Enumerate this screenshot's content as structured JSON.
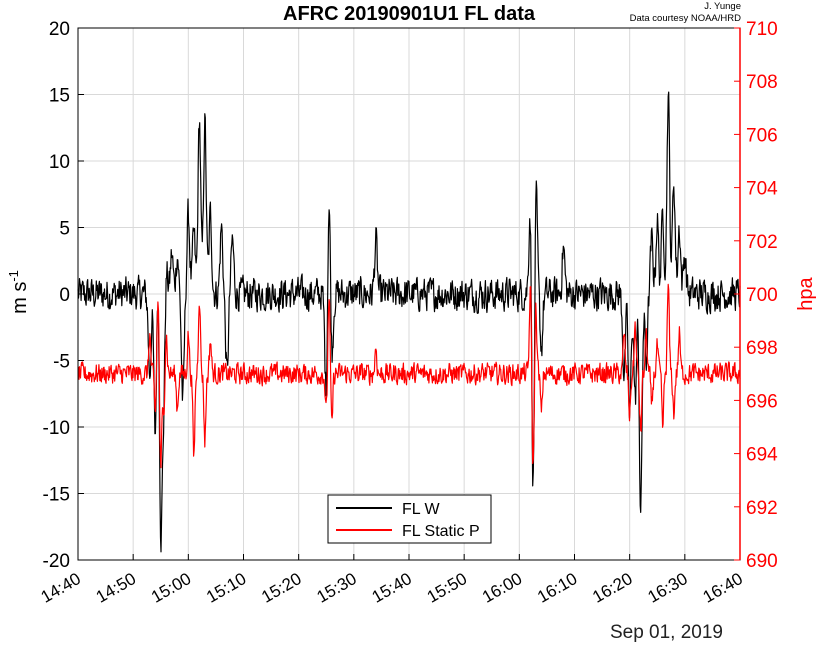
{
  "credit": {
    "author": "J. Yunge",
    "source": "Data courtesy NOAA/HRD"
  },
  "colors": {
    "w": "#000000",
    "p": "#ff0000",
    "grid": "#d9d9d9",
    "axis": "#000000"
  },
  "chart_data": {
    "type": "line",
    "title": "AFRC 20190901U1 FL data",
    "date_label": "Sep 01, 2019",
    "ylabel_left": "m s",
    "ylabel_left_sup": "-1",
    "ylabel_right": "hpa",
    "x_range": [
      "14:40",
      "16:40"
    ],
    "ylim_left": [
      -20,
      20
    ],
    "ylim_right": [
      690,
      710
    ],
    "grid": true,
    "legend_position": "bottom-center",
    "x_ticks": [
      "14:40",
      "14:50",
      "15:00",
      "15:10",
      "15:20",
      "15:30",
      "15:40",
      "15:50",
      "16:00",
      "16:10",
      "16:20",
      "16:30",
      "16:40"
    ],
    "y_ticks_left": [
      "-20",
      "-15",
      "-10",
      "-5",
      "0",
      "5",
      "10",
      "15",
      "20"
    ],
    "y_ticks_right": [
      "690",
      "692",
      "694",
      "696",
      "698",
      "700",
      "702",
      "704",
      "706",
      "708",
      "710"
    ],
    "series": [
      {
        "name": "FL W",
        "axis": "left",
        "baseline": 0.0,
        "noise": 1.1,
        "features": [
          {
            "t": "14:53",
            "v": -6
          },
          {
            "t": "14:54",
            "v": -11
          },
          {
            "t": "14:54:30",
            "v": 3
          },
          {
            "t": "14:55",
            "v": -17.2
          },
          {
            "t": "14:55:30",
            "v": -8
          },
          {
            "t": "14:56",
            "v": 2
          },
          {
            "t": "14:57",
            "v": 3
          },
          {
            "t": "14:58",
            "v": 3
          },
          {
            "t": "14:59",
            "v": -8
          },
          {
            "t": "15:00",
            "v": 6
          },
          {
            "t": "15:01",
            "v": 4.5
          },
          {
            "t": "15:02",
            "v": 13.2
          },
          {
            "t": "15:03",
            "v": 13
          },
          {
            "t": "15:04",
            "v": 6
          },
          {
            "t": "15:06",
            "v": 5
          },
          {
            "t": "15:07",
            "v": -6
          },
          {
            "t": "15:08",
            "v": 4
          },
          {
            "t": "15:25",
            "v": -8
          },
          {
            "t": "15:25:30",
            "v": 8.3
          },
          {
            "t": "15:26",
            "v": -5
          },
          {
            "t": "15:34",
            "v": 4
          },
          {
            "t": "16:02",
            "v": 7.5
          },
          {
            "t": "16:02:30",
            "v": -16
          },
          {
            "t": "16:03",
            "v": 8.6
          },
          {
            "t": "16:04",
            "v": -4
          },
          {
            "t": "16:08",
            "v": 3.5
          },
          {
            "t": "16:19",
            "v": -6
          },
          {
            "t": "16:20",
            "v": -9.5
          },
          {
            "t": "16:21",
            "v": -8
          },
          {
            "t": "16:22",
            "v": -16.6
          },
          {
            "t": "16:23",
            "v": -5
          },
          {
            "t": "16:24",
            "v": 4
          },
          {
            "t": "16:25",
            "v": 5.5
          },
          {
            "t": "16:26",
            "v": 6
          },
          {
            "t": "16:27",
            "v": 15
          },
          {
            "t": "16:28",
            "v": 8.5
          },
          {
            "t": "16:29",
            "v": 5
          },
          {
            "t": "16:30",
            "v": 3
          }
        ]
      },
      {
        "name": "FL Static P",
        "axis": "right",
        "baseline": 697.0,
        "noise": 0.35,
        "features": [
          {
            "t": "14:53",
            "v": 698.5
          },
          {
            "t": "14:54",
            "v": 695.5
          },
          {
            "t": "14:54:30",
            "v": 699.8
          },
          {
            "t": "14:55",
            "v": 693.4
          },
          {
            "t": "14:55:30",
            "v": 695.5
          },
          {
            "t": "14:56",
            "v": 698.5
          },
          {
            "t": "14:58",
            "v": 695.7
          },
          {
            "t": "15:00",
            "v": 698.5
          },
          {
            "t": "15:01",
            "v": 693.8
          },
          {
            "t": "15:02",
            "v": 700
          },
          {
            "t": "15:03",
            "v": 694.5
          },
          {
            "t": "15:04",
            "v": 698.3
          },
          {
            "t": "15:25",
            "v": 695.5
          },
          {
            "t": "15:25:30",
            "v": 700
          },
          {
            "t": "15:26",
            "v": 695
          },
          {
            "t": "15:34",
            "v": 698
          },
          {
            "t": "16:02",
            "v": 700.3
          },
          {
            "t": "16:02:30",
            "v": 693.5
          },
          {
            "t": "16:03",
            "v": 699.5
          },
          {
            "t": "16:04",
            "v": 695.5
          },
          {
            "t": "16:19",
            "v": 698.5
          },
          {
            "t": "16:20",
            "v": 695.5
          },
          {
            "t": "16:21",
            "v": 698.8
          },
          {
            "t": "16:22",
            "v": 694.8
          },
          {
            "t": "16:23",
            "v": 698.5
          },
          {
            "t": "16:24",
            "v": 695.8
          },
          {
            "t": "16:25",
            "v": 698
          },
          {
            "t": "16:26",
            "v": 695
          },
          {
            "t": "16:27",
            "v": 700.3
          },
          {
            "t": "16:28",
            "v": 695.5
          },
          {
            "t": "16:29",
            "v": 698.5
          }
        ]
      }
    ]
  }
}
